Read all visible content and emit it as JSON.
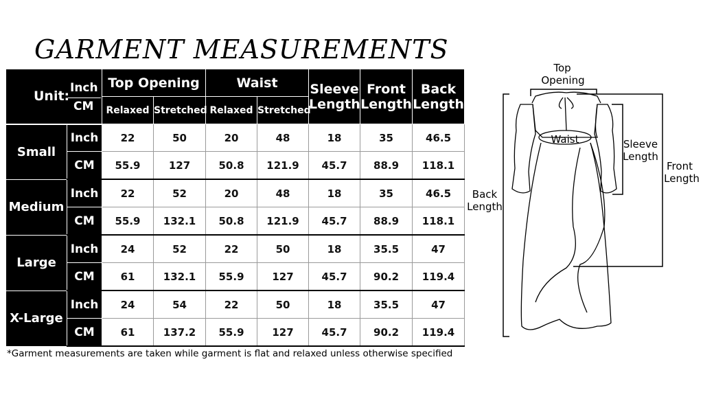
{
  "title": "GARMENT MEASUREMENTS",
  "table": {
    "unit_label": "Unit:",
    "unit_inch": "Inch",
    "unit_cm": "CM",
    "headers": {
      "top_opening": "Top Opening",
      "waist": "Waist",
      "relaxed": "Relaxed",
      "stretched": "Stretched",
      "sleeve": [
        "Sleeve",
        "Length"
      ],
      "front": [
        "Front",
        "Length"
      ],
      "back": [
        "Back",
        "Length"
      ]
    },
    "sizes": [
      {
        "name": "Small",
        "inch": [
          "22",
          "50",
          "20",
          "48",
          "18",
          "35",
          "46.5"
        ],
        "cm": [
          "55.9",
          "127",
          "50.8",
          "121.9",
          "45.7",
          "88.9",
          "118.1"
        ]
      },
      {
        "name": "Medium",
        "inch": [
          "22",
          "52",
          "20",
          "48",
          "18",
          "35",
          "46.5"
        ],
        "cm": [
          "55.9",
          "132.1",
          "50.8",
          "121.9",
          "45.7",
          "88.9",
          "118.1"
        ]
      },
      {
        "name": "Large",
        "inch": [
          "24",
          "52",
          "22",
          "50",
          "18",
          "35.5",
          "47"
        ],
        "cm": [
          "61",
          "132.1",
          "55.9",
          "127",
          "45.7",
          "90.2",
          "119.4"
        ]
      },
      {
        "name": "X-Large",
        "inch": [
          "24",
          "54",
          "22",
          "50",
          "18",
          "35.5",
          "47"
        ],
        "cm": [
          "61",
          "137.2",
          "55.9",
          "127",
          "45.7",
          "90.2",
          "119.4"
        ]
      }
    ]
  },
  "footnote": "*Garment measurements are taken while garment is flat and relaxed unless otherwise specified",
  "diagram": {
    "top_opening": [
      "Top",
      "Opening"
    ],
    "waist": "Waist",
    "sleeve_length": [
      "Sleeve",
      "Length"
    ],
    "front_length": [
      "Front",
      "Length"
    ],
    "back_length": [
      "Back",
      "Length"
    ]
  }
}
